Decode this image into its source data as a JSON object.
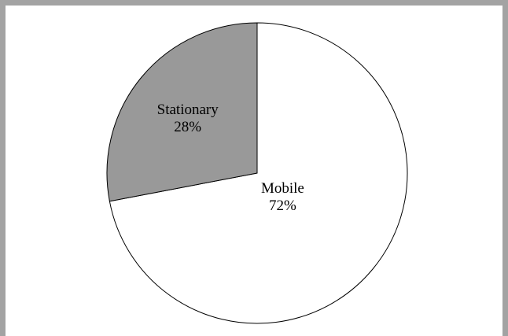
{
  "chart_data": {
    "type": "pie",
    "slices": [
      {
        "label": "Mobile",
        "value": 72,
        "value_label": "72%",
        "color": "#ffffff"
      },
      {
        "label": "Stationary",
        "value": 28,
        "value_label": "28%",
        "color": "#999999"
      }
    ],
    "start": "12 o'clock",
    "direction": "clockwise",
    "stroke_color": "#000000",
    "legend": "none"
  },
  "colors": {
    "frame": "#a3a3a3",
    "background": "#ffffff"
  }
}
